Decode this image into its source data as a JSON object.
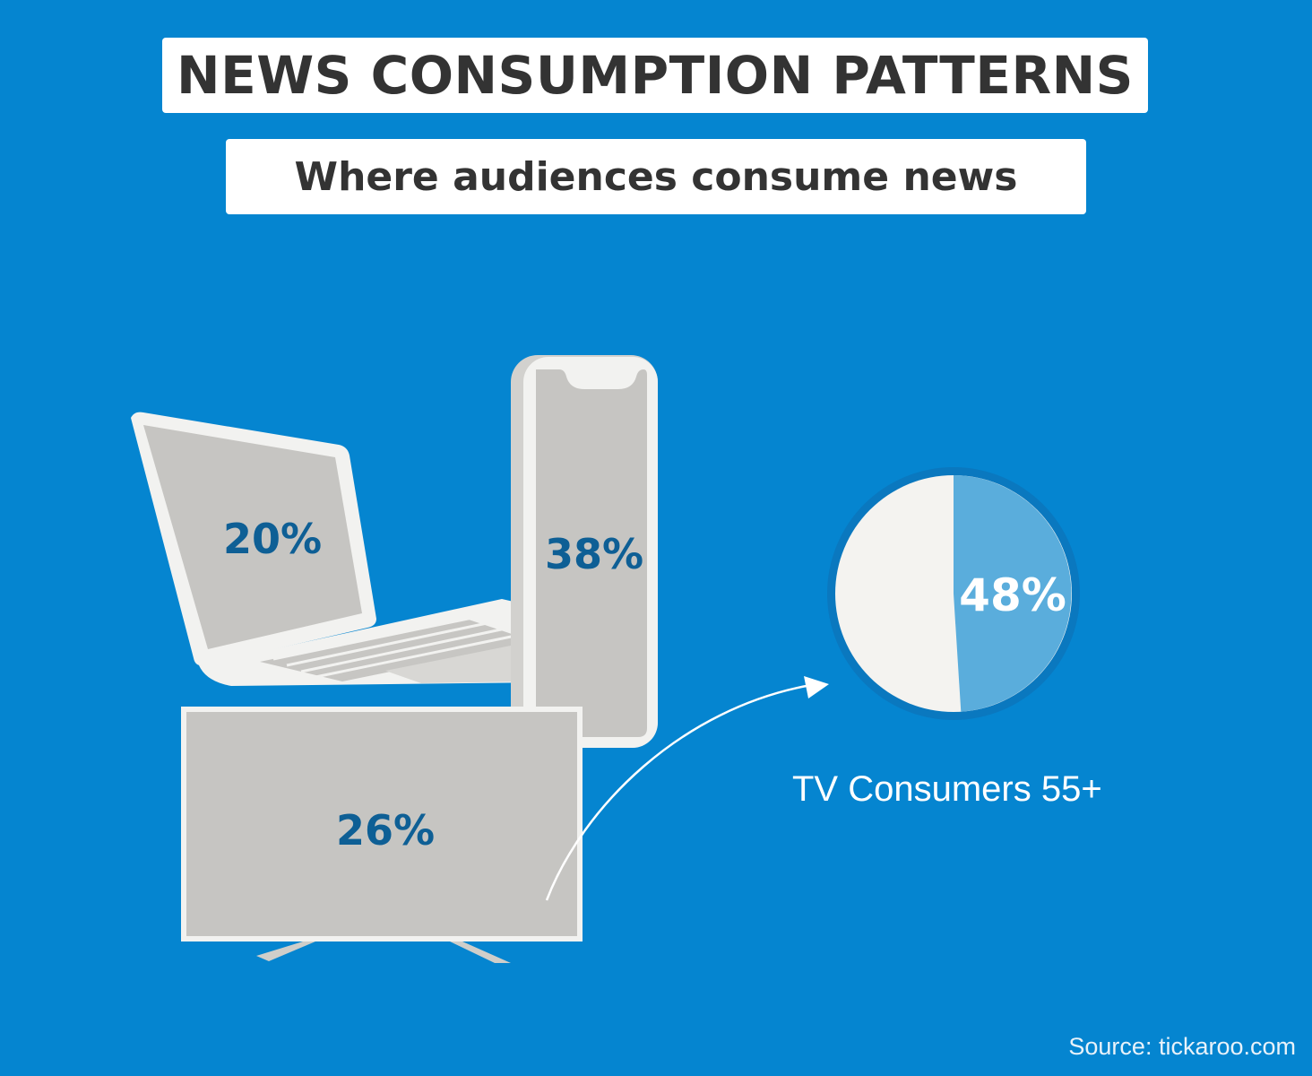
{
  "title": "NEWS CONSUMPTION PATTERNS",
  "subtitle": "Where audiences consume news",
  "devices": {
    "laptop": {
      "label": "20%",
      "value": 20
    },
    "smartphone": {
      "label": "38%",
      "value": 38
    },
    "tv": {
      "label": "26%",
      "value": 26
    }
  },
  "tv_pie": {
    "label": "48%",
    "value": 48,
    "caption": "TV Consumers 55+"
  },
  "source": "Source: tickaroo.com",
  "colors": {
    "background": "#0585d0",
    "screen_gray": "#c6c5c2",
    "device_frame": "#f2f2f0",
    "value_text": "#0e5f95",
    "pie_highlight": "#5aaddc",
    "pie_rest": "#f4f3f0"
  }
}
